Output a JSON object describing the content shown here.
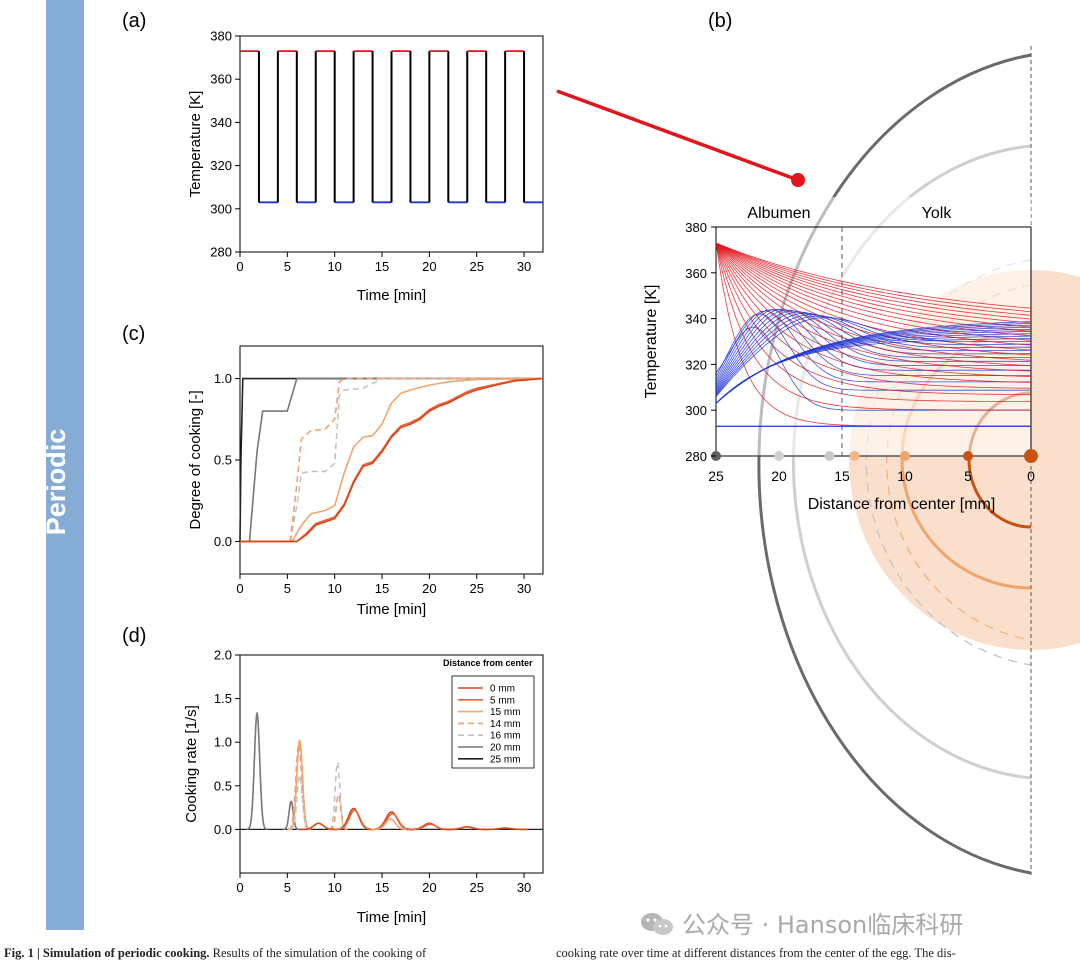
{
  "side_label": "Periodic",
  "chart_data": [
    {
      "id": "a",
      "panel_label": "(a)",
      "type": "line",
      "title": "",
      "xlabel": "Time [min]",
      "ylabel": "Temperature [K]",
      "xlim": [
        0,
        32
      ],
      "ylim": [
        280,
        380
      ],
      "xticks": [
        0,
        5,
        10,
        15,
        20,
        25,
        30
      ],
      "yticks": [
        280,
        300,
        320,
        340,
        360,
        380
      ],
      "period_min": 4,
      "hot_duration_min": 2,
      "hot_temp": 373,
      "cold_temp": 303,
      "hot_color": "#e3141b",
      "cold_color": "#1b35d6"
    },
    {
      "id": "b",
      "panel_label": "(b)",
      "type": "line",
      "xlabel": "Distance from center [mm]",
      "ylabel": "Temperature [K]",
      "xlim": [
        25,
        0
      ],
      "ylim": [
        280,
        380
      ],
      "xticks": [
        25,
        20,
        15,
        10,
        5,
        0
      ],
      "yticks": [
        280,
        300,
        320,
        340,
        360,
        380
      ],
      "regions": [
        {
          "label": "Albumen",
          "from": 25,
          "to": 15
        },
        {
          "label": "Yolk",
          "from": 15,
          "to": 0
        }
      ],
      "region_boundary_mm": 15,
      "boundary_temp": 373,
      "inner_temp": 293,
      "probe_points_mm": [
        25,
        20,
        16,
        14,
        10,
        5,
        0
      ],
      "probe_colors": [
        "#606060",
        "#cfcfcf",
        "#c8c8c8",
        "#f5b683",
        "#f2a46c",
        "#c8530f",
        "#c8530f"
      ],
      "hot_color": "#e3141b",
      "cold_color": "#1b35d6"
    },
    {
      "id": "c",
      "panel_label": "(c)",
      "type": "line",
      "xlabel": "Time [min]",
      "ylabel": "Degree of cooking [-]",
      "xlim": [
        0,
        32
      ],
      "ylim": [
        -0.2,
        1.2
      ],
      "xticks": [
        0,
        5,
        10,
        15,
        20,
        25,
        30
      ],
      "yticks": [
        0.0,
        0.5,
        1.0
      ],
      "ytick_labels": [
        "0.0",
        "0.5",
        "1.0"
      ],
      "series": [
        {
          "name": "0 mm",
          "color": "#d9461a",
          "dash": "",
          "points": [
            [
              0,
              0
            ],
            [
              6,
              0
            ],
            [
              7,
              0.04
            ],
            [
              8,
              0.1
            ],
            [
              9,
              0.12
            ],
            [
              10,
              0.14
            ],
            [
              11,
              0.22
            ],
            [
              12,
              0.36
            ],
            [
              13,
              0.46
            ],
            [
              14,
              0.48
            ],
            [
              15,
              0.55
            ],
            [
              16,
              0.64
            ],
            [
              17,
              0.7
            ],
            [
              18,
              0.72
            ],
            [
              19,
              0.75
            ],
            [
              20,
              0.8
            ],
            [
              21,
              0.83
            ],
            [
              22,
              0.85
            ],
            [
              23,
              0.88
            ],
            [
              24,
              0.91
            ],
            [
              25,
              0.93
            ],
            [
              27,
              0.96
            ],
            [
              29,
              0.985
            ],
            [
              32,
              1.0
            ]
          ]
        },
        {
          "name": "5 mm",
          "color": "#e8643a",
          "dash": "",
          "points": [
            [
              0,
              0
            ],
            [
              6,
              0
            ],
            [
              7,
              0.05
            ],
            [
              8,
              0.11
            ],
            [
              9,
              0.13
            ],
            [
              10,
              0.15
            ],
            [
              11,
              0.23
            ],
            [
              12,
              0.37
            ],
            [
              13,
              0.47
            ],
            [
              14,
              0.49
            ],
            [
              15,
              0.56
            ],
            [
              16,
              0.65
            ],
            [
              17,
              0.71
            ],
            [
              18,
              0.73
            ],
            [
              19,
              0.76
            ],
            [
              20,
              0.81
            ],
            [
              21,
              0.84
            ],
            [
              22,
              0.86
            ],
            [
              23,
              0.89
            ],
            [
              24,
              0.92
            ],
            [
              25,
              0.94
            ],
            [
              27,
              0.965
            ],
            [
              29,
              0.99
            ],
            [
              32,
              1.0
            ]
          ]
        },
        {
          "name": "15 mm",
          "color": "#f2a46c",
          "dash": "",
          "points": [
            [
              0,
              0
            ],
            [
              5.5,
              0
            ],
            [
              6.5,
              0.1
            ],
            [
              7.5,
              0.17
            ],
            [
              9,
              0.19
            ],
            [
              10,
              0.22
            ],
            [
              11,
              0.42
            ],
            [
              12,
              0.58
            ],
            [
              13,
              0.64
            ],
            [
              14,
              0.65
            ],
            [
              15,
              0.72
            ],
            [
              16,
              0.85
            ],
            [
              17,
              0.91
            ],
            [
              18,
              0.93
            ],
            [
              20,
              0.96
            ],
            [
              22,
              0.98
            ],
            [
              25,
              0.995
            ],
            [
              32,
              1.0
            ]
          ]
        },
        {
          "name": "14 mm",
          "color": "#f0a070",
          "dash": "6,4",
          "points": [
            [
              0,
              0
            ],
            [
              5.3,
              0
            ],
            [
              6,
              0.35
            ],
            [
              6.5,
              0.63
            ],
            [
              7.5,
              0.68
            ],
            [
              9,
              0.69
            ],
            [
              10,
              0.75
            ],
            [
              10.5,
              0.98
            ],
            [
              11,
              1.0
            ],
            [
              32,
              1.0
            ]
          ]
        },
        {
          "name": "16 mm",
          "color": "#c2c2c2",
          "dash": "6,4",
          "points": [
            [
              0,
              0
            ],
            [
              5.3,
              0
            ],
            [
              6,
              0.22
            ],
            [
              6.5,
              0.42
            ],
            [
              7.5,
              0.43
            ],
            [
              9,
              0.43
            ],
            [
              10,
              0.48
            ],
            [
              10.5,
              0.9
            ],
            [
              11,
              0.93
            ],
            [
              13,
              0.94
            ],
            [
              14,
              0.97
            ],
            [
              15,
              1.0
            ],
            [
              32,
              1.0
            ]
          ]
        },
        {
          "name": "20 mm",
          "color": "#777777",
          "dash": "",
          "points": [
            [
              0,
              0
            ],
            [
              1,
              0
            ],
            [
              1.8,
              0.55
            ],
            [
              2.4,
              0.8
            ],
            [
              5,
              0.8
            ],
            [
              5.5,
              0.9
            ],
            [
              6,
              1.0
            ],
            [
              32,
              1.0
            ]
          ]
        },
        {
          "name": "25 mm",
          "color": "#222222",
          "dash": "",
          "points": [
            [
              0,
              0
            ],
            [
              0.1,
              0.5
            ],
            [
              0.3,
              1.0
            ],
            [
              32,
              1.0
            ]
          ]
        }
      ]
    },
    {
      "id": "d",
      "panel_label": "(d)",
      "type": "line",
      "xlabel": "Time [min]",
      "ylabel": "Cooking rate [1/s]",
      "xlim": [
        0,
        32
      ],
      "ylim": [
        -0.5,
        2.0
      ],
      "xticks": [
        0,
        5,
        10,
        15,
        20,
        25,
        30
      ],
      "yticks": [
        0.0,
        0.5,
        1.0,
        1.5,
        2.0
      ],
      "ytick_labels": [
        "0.0",
        "0.5",
        "1.0",
        "1.5",
        "2.0"
      ],
      "legend_title": "Distance from center",
      "legend": [
        {
          "label": "0 mm",
          "color": "#d9461a",
          "dash": ""
        },
        {
          "label": "5 mm",
          "color": "#e8643a",
          "dash": ""
        },
        {
          "label": "15 mm",
          "color": "#f2a46c",
          "dash": ""
        },
        {
          "label": "14 mm",
          "color": "#f0a070",
          "dash": "6,4"
        },
        {
          "label": "16 mm",
          "color": "#c2c2c2",
          "dash": "6,4"
        },
        {
          "label": "20 mm",
          "color": "#777777",
          "dash": ""
        },
        {
          "label": "25 mm",
          "color": "#222222",
          "dash": ""
        }
      ],
      "peaks": [
        {
          "series": "20 mm",
          "color": "#777777",
          "dash": "",
          "t": 1.8,
          "h": 1.33,
          "w": 0.28
        },
        {
          "series": "20 mm",
          "color": "#777777",
          "dash": "",
          "t": 5.4,
          "h": 0.32,
          "w": 0.22
        },
        {
          "series": "14 mm",
          "color": "#f0a070",
          "dash": "6,4",
          "t": 6.2,
          "h": 0.98,
          "w": 0.3
        },
        {
          "series": "15 mm",
          "color": "#f2a46c",
          "dash": "",
          "t": 6.3,
          "h": 1.02,
          "w": 0.3
        },
        {
          "series": "16 mm",
          "color": "#c2c2c2",
          "dash": "6,4",
          "t": 6.3,
          "h": 0.62,
          "w": 0.28
        },
        {
          "series": "16 mm",
          "color": "#c2c2c2",
          "dash": "6,4",
          "t": 10.3,
          "h": 0.77,
          "w": 0.25
        },
        {
          "series": "14 mm",
          "color": "#f0a070",
          "dash": "6,4",
          "t": 10.4,
          "h": 0.4,
          "w": 0.25
        },
        {
          "series": "0 mm",
          "color": "#d9461a",
          "dash": "",
          "t": 8.3,
          "h": 0.07,
          "w": 0.5
        },
        {
          "series": "0 mm",
          "color": "#d9461a",
          "dash": "",
          "t": 12.0,
          "h": 0.24,
          "w": 0.55
        },
        {
          "series": "5 mm",
          "color": "#e8643a",
          "dash": "",
          "t": 12.1,
          "h": 0.22,
          "w": 0.55
        },
        {
          "series": "0 mm",
          "color": "#d9461a",
          "dash": "",
          "t": 16.0,
          "h": 0.2,
          "w": 0.6
        },
        {
          "series": "5 mm",
          "color": "#e8643a",
          "dash": "",
          "t": 16.1,
          "h": 0.18,
          "w": 0.6
        },
        {
          "series": "15 mm",
          "color": "#f2a46c",
          "dash": "",
          "t": 15.9,
          "h": 0.12,
          "w": 0.5
        },
        {
          "series": "0 mm",
          "color": "#d9461a",
          "dash": "",
          "t": 20.0,
          "h": 0.07,
          "w": 0.6
        },
        {
          "series": "5 mm",
          "color": "#e8643a",
          "dash": "",
          "t": 20.1,
          "h": 0.06,
          "w": 0.6
        },
        {
          "series": "0 mm",
          "color": "#d9461a",
          "dash": "",
          "t": 24.0,
          "h": 0.03,
          "w": 0.6
        },
        {
          "series": "0 mm",
          "color": "#d9461a",
          "dash": "",
          "t": 28.0,
          "h": 0.015,
          "w": 0.6
        }
      ]
    }
  ],
  "caption": {
    "left_bold": "Fig. 1 | Simulation of periodic cooking.",
    "left_rest": " Results of the simulation of the cooking of",
    "right": "cooking rate over time at different distances from the center of the egg. The dis-"
  },
  "watermark": "公众号 · Hanson临床科研"
}
